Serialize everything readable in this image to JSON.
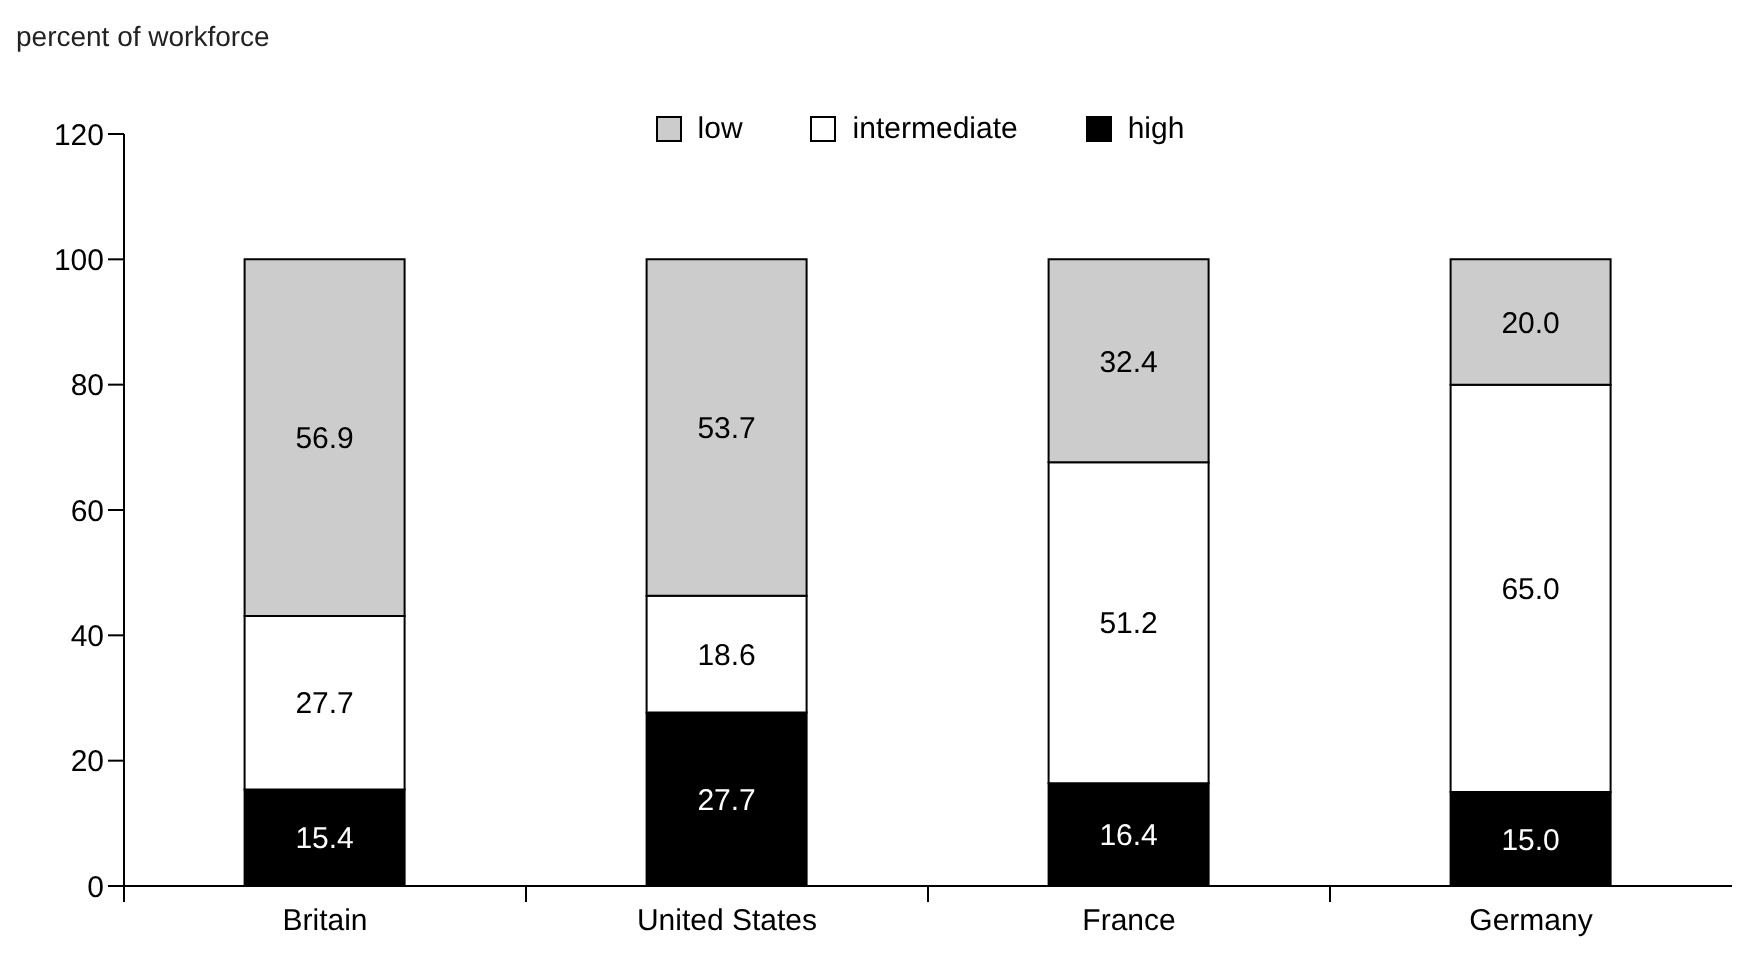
{
  "chart_data": {
    "type": "bar",
    "ylabel": "percent of workforce",
    "categories": [
      "Britain",
      "United States",
      "France",
      "Germany"
    ],
    "stacked": true,
    "series": [
      {
        "name": "high",
        "color": "#000000",
        "values": [
          15.4,
          27.7,
          16.4,
          15.0
        ],
        "value_labels": [
          "15.4",
          "27.7",
          "16.4",
          "15.0"
        ]
      },
      {
        "name": "intermediate",
        "color": "#ffffff",
        "values": [
          27.7,
          18.6,
          51.2,
          65.0
        ],
        "value_labels": [
          "27.7",
          "18.6",
          "51.2",
          "65.0"
        ]
      },
      {
        "name": "low",
        "color": "#cccccc",
        "values": [
          56.9,
          53.7,
          32.4,
          20.0
        ],
        "value_labels": [
          "56.9",
          "53.7",
          "32.4",
          "20.0"
        ]
      }
    ],
    "ylim": [
      0,
      120
    ],
    "yticks": [
      0,
      20,
      40,
      60,
      80,
      100,
      120
    ],
    "grid": false,
    "legend": "top"
  }
}
